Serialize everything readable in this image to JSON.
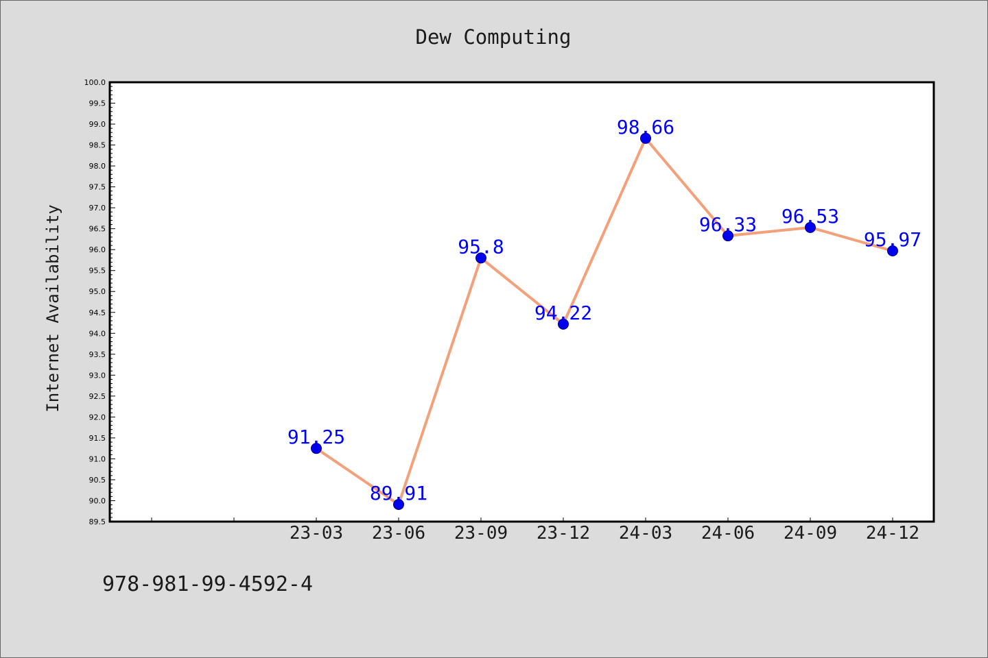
{
  "chart_data": {
    "type": "line",
    "title": "Dew Computing",
    "xlabel": "",
    "ylabel": "Internet Availability",
    "categories": [
      "23-03",
      "23-06",
      "23-09",
      "23-12",
      "24-03",
      "24-06",
      "24-09",
      "24-12"
    ],
    "series": [
      {
        "values": [
          91.25,
          89.91,
          95.8,
          94.22,
          98.66,
          96.33,
          96.53,
          95.97
        ],
        "labels": [
          "91.25",
          "89.91",
          "95.8",
          "94.22",
          "98.66",
          "96.33",
          "96.53",
          "95.97"
        ],
        "line_color": "#f4a07a",
        "marker_color": "#0000ee",
        "label_color": "#0000ff"
      }
    ],
    "ylim": [
      89.5,
      100.0
    ],
    "yticks": [
      "89.5",
      "90.0",
      "90.5",
      "91.0",
      "91.5",
      "92.0",
      "92.5",
      "93.0",
      "93.5",
      "94.0",
      "94.5",
      "95.0",
      "95.5",
      "96.0",
      "96.5",
      "97.0",
      "97.5",
      "98.0",
      "98.5",
      "99.0",
      "99.5",
      "100.0"
    ],
    "grid": false,
    "legend": "none"
  },
  "footer_text": "978-981-99-4592-4",
  "colors": {
    "background": "#dcdcdc",
    "plot_background": "#ffffff",
    "axis": "#000000",
    "text": "#1a1a1a"
  }
}
